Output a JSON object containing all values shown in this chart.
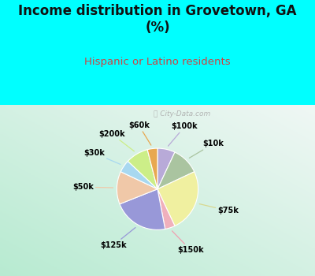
{
  "title": "Income distribution in Grovetown, GA\n(%)",
  "subtitle": "Hispanic or Latino residents",
  "title_color": "#111111",
  "subtitle_color": "#cc4444",
  "bg_cyan": "#00FFFF",
  "watermark": "ⓘ City-Data.com",
  "wedge_labels": [
    "$100k",
    "$10k",
    "$75k",
    "$150k",
    "$125k",
    "$50k",
    "$30k",
    "$200k",
    "$60k"
  ],
  "wedge_values": [
    7,
    11,
    25,
    4,
    22,
    13,
    5,
    9,
    4
  ],
  "wedge_colors": [
    "#b8aad8",
    "#aac4a0",
    "#f0f0a0",
    "#f0b0bc",
    "#9898d8",
    "#f0c8a8",
    "#a8d8f0",
    "#ccee88",
    "#e8a850"
  ],
  "label_colors": [
    "#b8aad8",
    "#aac4a0",
    "#d8d890",
    "#f0a0b0",
    "#9898d8",
    "#f0c8a8",
    "#a8d8f0",
    "#ccee88",
    "#e8a850"
  ],
  "start_angle": 90,
  "fig_width": 4.0,
  "fig_height": 3.5,
  "title_fontsize": 12,
  "subtitle_fontsize": 9.5,
  "label_fontsize": 7
}
